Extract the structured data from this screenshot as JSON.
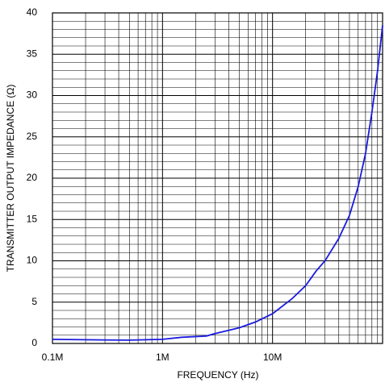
{
  "chart_data": {
    "type": "line",
    "log_x": true,
    "grid": true,
    "minor_grid": true,
    "x_label": "FREQUENCY (Hz)",
    "y_label": "TRANSMITTER OUTPUT IMPEDANCE (Ω)",
    "xlim": [
      100000,
      100000000
    ],
    "xticks": [
      {
        "value": 100000,
        "label": "0.1M"
      },
      {
        "value": 1000000,
        "label": "1M"
      },
      {
        "value": 10000000,
        "label": "10M"
      }
    ],
    "ylim": [
      0,
      40
    ],
    "yticks": [
      0,
      5,
      10,
      15,
      20,
      25,
      30,
      35,
      40
    ],
    "series": [
      {
        "color": "#1a1adf",
        "x": [
          100000,
          200000,
          500000,
          1000000,
          1500000,
          2500000,
          3000000,
          5000000,
          7000000,
          10000000,
          15000000,
          20000000,
          25000000,
          30000000,
          40000000,
          50000000,
          60000000,
          70000000,
          80000000,
          90000000,
          100000000
        ],
        "values": [
          0.5,
          0.45,
          0.4,
          0.5,
          0.75,
          0.9,
          1.2,
          1.9,
          2.6,
          3.6,
          5.4,
          7,
          8.8,
          10,
          12.7,
          15.5,
          19,
          23,
          28,
          33,
          38.5
        ]
      }
    ]
  }
}
